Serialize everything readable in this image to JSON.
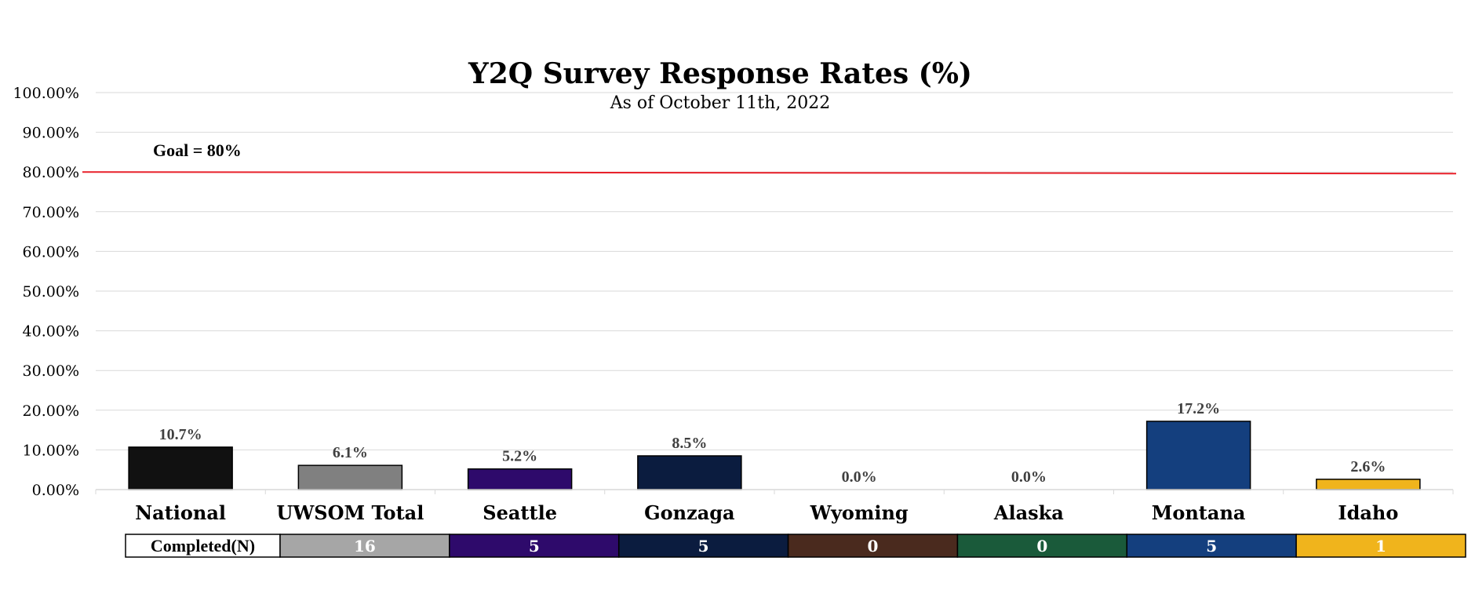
{
  "chart_data": {
    "type": "bar",
    "title": "Y2Q Survey Response Rates (%)",
    "subtitle": "As of October 11th, 2022",
    "categories": [
      "National",
      "UWSOM Total",
      "Seattle",
      "Gonzaga",
      "Wyoming",
      "Alaska",
      "Montana",
      "Idaho"
    ],
    "values": [
      10.7,
      6.1,
      5.2,
      8.5,
      0.0,
      0.0,
      17.2,
      2.6
    ],
    "data_labels": [
      "10.7%",
      "6.1%",
      "5.2%",
      "8.5%",
      "0.0%",
      "0.0%",
      "17.2%",
      "2.6%"
    ],
    "bar_colors": [
      "#111111",
      "#808080",
      "#2e0a6b",
      "#0b1c3f",
      "#4a2a1e",
      "#1a5a3a",
      "#143f7e",
      "#f0b41c"
    ],
    "ylim": [
      0,
      100
    ],
    "yticks": [
      0,
      10,
      20,
      30,
      40,
      50,
      60,
      70,
      80,
      90,
      100
    ],
    "ytick_labels": [
      "0.00%",
      "10.00%",
      "20.00%",
      "30.00%",
      "40.00%",
      "50.00%",
      "60.00%",
      "70.00%",
      "80.00%",
      "90.00%",
      "100.00%"
    ],
    "grid": true,
    "goal_line": {
      "value": 80,
      "label": "Goal = 80%",
      "color": "#e8202a"
    },
    "table": {
      "header": "Completed(N)",
      "values": [
        "16",
        "5",
        "5",
        "0",
        "0",
        "5",
        "1"
      ],
      "colors": [
        "#a6a6a6",
        "#2e0a6b",
        "#0b1c3f",
        "#4a2a1e",
        "#1a5a3a",
        "#143f7e",
        "#f0b41c"
      ]
    }
  }
}
